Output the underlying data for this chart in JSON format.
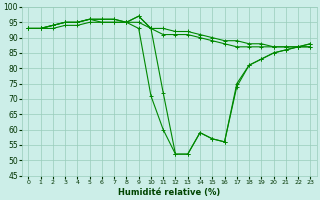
{
  "xlabel": "Humidité relative (%)",
  "bg_color": "#cceee8",
  "grid_color": "#99ccbb",
  "line_color": "#008800",
  "xlim": [
    -0.5,
    23.5
  ],
  "ylim": [
    45,
    100
  ],
  "xticks": [
    0,
    1,
    2,
    3,
    4,
    5,
    6,
    7,
    8,
    9,
    10,
    11,
    12,
    13,
    14,
    15,
    16,
    17,
    18,
    19,
    20,
    21,
    22,
    23
  ],
  "yticks": [
    45,
    50,
    55,
    60,
    65,
    70,
    75,
    80,
    85,
    90,
    95,
    100
  ],
  "curves": [
    [
      93,
      93,
      93,
      94,
      94,
      95,
      95,
      95,
      95,
      97,
      93,
      93,
      92,
      92,
      91,
      90,
      89,
      89,
      88,
      88,
      87,
      87,
      87,
      87
    ],
    [
      93,
      93,
      94,
      95,
      95,
      96,
      96,
      96,
      95,
      95,
      93,
      91,
      91,
      91,
      90,
      89,
      88,
      87,
      87,
      87,
      87,
      87,
      87,
      87
    ],
    [
      93,
      93,
      94,
      95,
      95,
      96,
      96,
      96,
      95,
      93,
      71,
      60,
      52,
      52,
      59,
      57,
      56,
      75,
      81,
      83,
      85,
      86,
      87,
      88
    ],
    [
      93,
      93,
      94,
      95,
      95,
      96,
      95,
      95,
      95,
      97,
      93,
      72,
      52,
      52,
      59,
      57,
      56,
      74,
      81,
      83,
      85,
      86,
      87,
      88
    ]
  ]
}
